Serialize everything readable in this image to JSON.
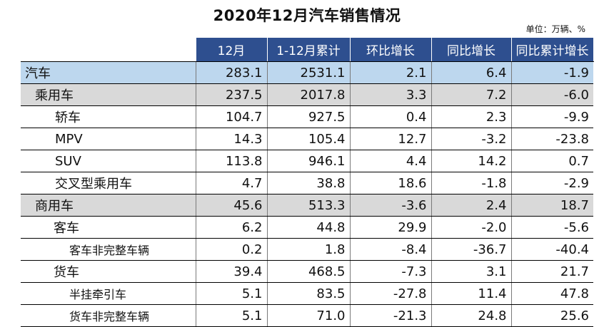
{
  "title": "2020年12月汽车销售情况",
  "unit": "单位：万辆、%",
  "table": {
    "headers": [
      "",
      "12月",
      "1-12月累计",
      "环比增长",
      "同比增长",
      "同比累计增长"
    ],
    "rows": [
      {
        "name": "汽车",
        "level": 0,
        "values": [
          "283.1",
          "2531.1",
          "2.1",
          "6.4",
          "-1.9"
        ]
      },
      {
        "name": "乘用车",
        "level": 1,
        "values": [
          "237.5",
          "2017.8",
          "3.3",
          "7.2",
          "-6.0"
        ]
      },
      {
        "name": "轿车",
        "level": 2,
        "values": [
          "104.7",
          "927.5",
          "0.4",
          "2.3",
          "-9.9"
        ]
      },
      {
        "name": "MPV",
        "level": 2,
        "values": [
          "14.3",
          "105.4",
          "12.7",
          "-3.2",
          "-23.8"
        ]
      },
      {
        "name": "SUV",
        "level": 2,
        "values": [
          "113.8",
          "946.1",
          "4.4",
          "14.2",
          "0.7"
        ]
      },
      {
        "name": "交叉型乘用车",
        "level": 2,
        "values": [
          "4.7",
          "38.8",
          "18.6",
          "-1.8",
          "-2.9"
        ]
      },
      {
        "name": "商用车",
        "level": 1,
        "values": [
          "45.6",
          "513.3",
          "-3.6",
          "2.4",
          "18.7"
        ]
      },
      {
        "name": "客车",
        "level": 2,
        "values": [
          "6.2",
          "44.8",
          "29.9",
          "-2.0",
          "-5.6"
        ]
      },
      {
        "name": "客车非完整车辆",
        "level": 3,
        "values": [
          "0.2",
          "1.8",
          "-8.4",
          "-36.7",
          "-40.4"
        ]
      },
      {
        "name": "货车",
        "level": 2,
        "values": [
          "39.4",
          "468.5",
          "-7.3",
          "3.1",
          "21.7"
        ]
      },
      {
        "name": "半挂牵引车",
        "level": 3,
        "values": [
          "5.1",
          "83.5",
          "-27.8",
          "11.4",
          "47.8"
        ]
      },
      {
        "name": "货车非完整车辆",
        "level": 3,
        "values": [
          "5.1",
          "71.0",
          "-21.3",
          "24.8",
          "25.6"
        ]
      }
    ]
  }
}
